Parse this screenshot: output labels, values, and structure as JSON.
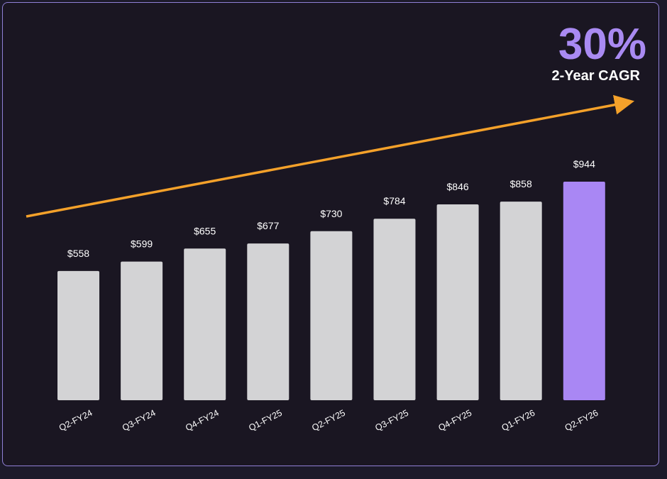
{
  "colors": {
    "bar": "#d3d3d5",
    "highlight_bar": "#a987f4",
    "arrow": "#f4a12a",
    "accent": "#a98af2",
    "label": "#ffffff",
    "background": "#1a1622",
    "border": "#8f7fd6"
  },
  "callout": {
    "value": "30%",
    "label": "2-Year CAGR"
  },
  "chart_data": {
    "type": "bar",
    "title": "",
    "xlabel": "",
    "ylabel": "",
    "categories": [
      "Q2-FY24",
      "Q3-FY24",
      "Q4-FY24",
      "Q1-FY25",
      "Q2-FY25",
      "Q3-FY25",
      "Q4-FY25",
      "Q1-FY26",
      "Q2-FY26"
    ],
    "values": [
      558,
      599,
      655,
      677,
      730,
      784,
      846,
      858,
      944
    ],
    "value_labels": [
      "$558",
      "$599",
      "$655",
      "$677",
      "$730",
      "$784",
      "$846",
      "$858",
      "$944"
    ],
    "highlight_index": 8,
    "ylim": [
      0,
      944
    ],
    "grid": false,
    "legend": "none",
    "annotations": [
      {
        "type": "trend-arrow",
        "direction": "up-right"
      },
      {
        "type": "callout",
        "text": "30%"
      },
      {
        "type": "callout",
        "text": "2-Year CAGR"
      }
    ]
  }
}
